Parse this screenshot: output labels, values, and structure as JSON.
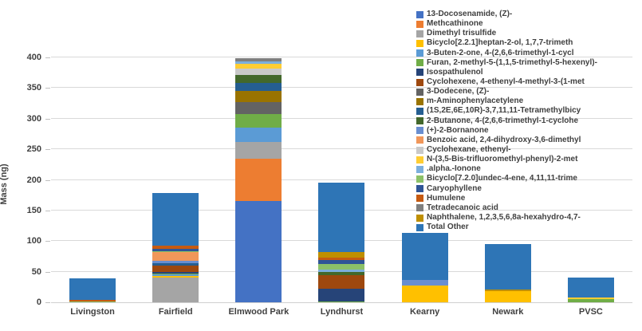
{
  "chart_data": {
    "type": "bar",
    "stacked": true,
    "title": "",
    "xlabel": "",
    "ylabel": "Mass (ng)",
    "ylim": [
      0,
      400
    ],
    "ytick_step": 50,
    "yticks": [
      0,
      50,
      100,
      150,
      200,
      250,
      300,
      350,
      400
    ],
    "grid": true,
    "legend_position": "top-right",
    "categories": [
      "Livingston",
      "Fairfield",
      "Elmwood Park",
      "Lyndhurst",
      "Kearny",
      "Newark",
      "PVSC"
    ],
    "category_totals_ng": [
      39,
      178,
      399,
      196,
      114,
      95,
      40
    ],
    "series": [
      {
        "name": "13-Docosenamide, (Z)-",
        "color": "#4472C4",
        "values": [
          0,
          0,
          165,
          0,
          0,
          0,
          0
        ]
      },
      {
        "name": "Methcathinone",
        "color": "#ED7D31",
        "values": [
          0,
          0,
          70,
          0,
          0,
          0,
          0
        ]
      },
      {
        "name": "Dimethyl trisulfide",
        "color": "#A5A5A5",
        "values": [
          0,
          41,
          27,
          0,
          0,
          0,
          0
        ]
      },
      {
        "name": "Bicyclo[2.2.1]heptan-2-ol, 1,7,7-trimeth",
        "color": "#FFC000",
        "values": [
          0,
          2,
          0,
          0,
          28,
          18,
          0
        ]
      },
      {
        "name": "3-Buten-2-one, 4-(2,6,6-trimethyl-1-cycl",
        "color": "#5B9BD5",
        "values": [
          0,
          2,
          23,
          0,
          0,
          0,
          0
        ]
      },
      {
        "name": "Furan, 2-methyl-5-(1,1,5-trimethyl-5-hexenyl)-",
        "color": "#70AD47",
        "values": [
          0,
          2,
          23,
          1,
          0,
          0,
          5
        ]
      },
      {
        "name": "Isospathulenol",
        "color": "#264478",
        "values": [
          0,
          3,
          0,
          21,
          0,
          0,
          0
        ]
      },
      {
        "name": "Cyclohexene, 4-ethenyl-4-methyl-3-(1-met",
        "color": "#9E480E",
        "values": [
          0,
          10,
          0,
          22,
          0,
          0,
          0
        ]
      },
      {
        "name": "3-Dodecene, (Z)-",
        "color": "#636363",
        "values": [
          0,
          0,
          19,
          0,
          0,
          0,
          0
        ]
      },
      {
        "name": "m-Aminophenylacetylene",
        "color": "#997300",
        "values": [
          0,
          0,
          18,
          0,
          0,
          0,
          0
        ]
      },
      {
        "name": "(1S,2E,6E,10R)-3,7,11,11-Tetramethylbicy",
        "color": "#255E91",
        "values": [
          0,
          4,
          13,
          0,
          0,
          0,
          0
        ]
      },
      {
        "name": "2-Butanone, 4-(2,6,6-trimethyl-1-cyclohe",
        "color": "#43682B",
        "values": [
          0,
          0,
          13,
          6,
          0,
          0,
          0
        ]
      },
      {
        "name": "(+)-2-Bornanone",
        "color": "#698ED0",
        "values": [
          0,
          4,
          0,
          0,
          9,
          0,
          0
        ]
      },
      {
        "name": "Benzoic acid, 2,4-dihydroxy-3,6-dimethyl",
        "color": "#F1975A",
        "values": [
          0,
          14,
          0,
          0,
          0,
          0,
          0
        ]
      },
      {
        "name": "Cyclohexane, ethenyl-",
        "color": "#C9C9C9",
        "values": [
          0,
          0,
          11,
          0,
          0,
          0,
          0
        ]
      },
      {
        "name": "N-(3,5-Bis-trifluoromethyl-phenyl)-2-met",
        "color": "#FFCD33",
        "values": [
          0,
          0,
          8,
          0,
          0,
          0,
          3
        ]
      },
      {
        "name": ".alpha.-Ionone",
        "color": "#7CAFDD",
        "values": [
          0,
          0,
          4,
          4,
          0,
          0,
          0
        ]
      },
      {
        "name": "Bicyclo[7.2.0]undec-4-ene, 4,11,11-trime",
        "color": "#8CC168",
        "values": [
          1.5,
          2,
          0,
          8,
          0,
          0,
          0
        ]
      },
      {
        "name": "Caryophyllene",
        "color": "#2F5597",
        "values": [
          0,
          4,
          0,
          7,
          0,
          0,
          0
        ]
      },
      {
        "name": "Humulene",
        "color": "#C55A11",
        "values": [
          2.5,
          5,
          0,
          4,
          0,
          0,
          0
        ]
      },
      {
        "name": "Tetradecanoic acid",
        "color": "#7F7F7F",
        "values": [
          0,
          0,
          5,
          0,
          0,
          0,
          0
        ]
      },
      {
        "name": "Naphthalene, 1,2,3,5,6,8a-hexahydro-4,7-",
        "color": "#BF8F00",
        "values": [
          0,
          0,
          0,
          9,
          0,
          3,
          0
        ]
      },
      {
        "name": "Total Other",
        "color": "#2E75B6",
        "values": [
          35,
          85,
          0,
          114,
          77,
          74,
          32
        ]
      }
    ],
    "grid_color": "#D9D9D9",
    "axis_text_color": "#404040"
  }
}
